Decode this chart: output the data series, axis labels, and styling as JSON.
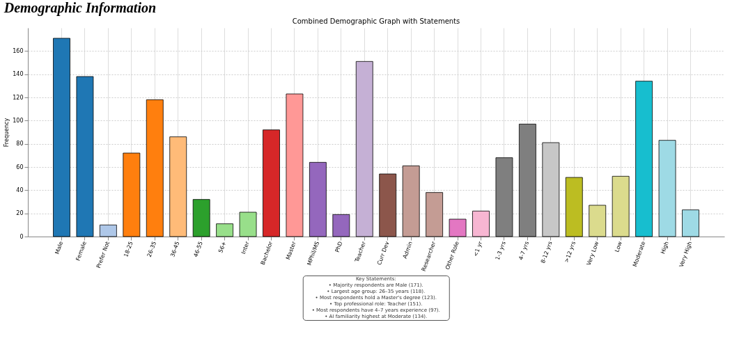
{
  "chart_data": {
    "type": "bar",
    "title": "Demographic Information",
    "subtitle": "Combined Demographic Graph with Statements",
    "ylabel": "Frequency",
    "categories": [
      "Male",
      "Female",
      "Prefer Not",
      "18-25",
      "26-35",
      "36-45",
      "46-55",
      "56+",
      "Inter",
      "Bachelor",
      "Master",
      "MPhil/MS",
      "PhD",
      "Teacher",
      "Curr Dev",
      "Admin",
      "Researcher",
      "Other Role",
      "<1 yr",
      "1-3 yrs",
      "4-7 yrs",
      "8-12 yrs",
      ">12 yrs",
      "Very Low",
      "Low",
      "Moderate",
      "High",
      "Very High"
    ],
    "values": [
      171,
      138,
      10,
      72,
      118,
      86,
      32,
      11,
      21,
      92,
      123,
      64,
      19,
      151,
      54,
      61,
      38,
      15,
      22,
      68,
      97,
      81,
      51,
      27,
      52,
      134,
      83,
      23
    ],
    "colors": [
      "#1f77b4",
      "#1f77b4",
      "#aec7e8",
      "#ff7f0e",
      "#ff7f0e",
      "#ffbb78",
      "#2ca02c",
      "#98df8a",
      "#98df8a",
      "#d62728",
      "#ff9896",
      "#9467bd",
      "#9467bd",
      "#c5b0d5",
      "#8c564b",
      "#c49c94",
      "#c49c94",
      "#e377c2",
      "#f7b6d2",
      "#7f7f7f",
      "#7f7f7f",
      "#c7c7c7",
      "#bcbd22",
      "#dbdb8d",
      "#dbdb8d",
      "#17becf",
      "#9edae5",
      "#9edae5"
    ],
    "ylim": [
      0,
      180
    ],
    "yticks": [
      0,
      20,
      40,
      60,
      80,
      100,
      120,
      140,
      160
    ],
    "grid": true,
    "annotations": [
      "Key Statements:",
      "• Majority respondents are Male (171).",
      "• Largest age group: 26–35 years (118).",
      "• Most respondents hold a Master's degree (123).",
      "• Top professional role: Teacher (151).",
      "• Most respondents have 4–7 years experience (97).",
      "• AI familiarity highest at Moderate (134)."
    ]
  }
}
